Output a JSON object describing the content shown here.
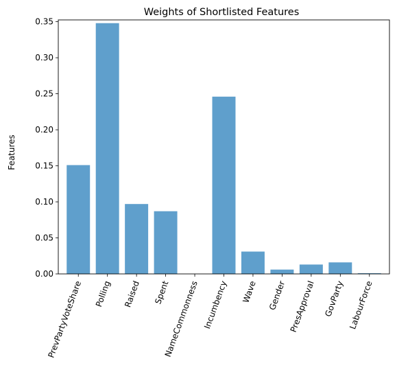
{
  "chart_data": {
    "type": "bar",
    "title": "Weights of Shortlisted Features",
    "xlabel": "",
    "ylabel": "Features",
    "categories": [
      "PrevPartyVoteShare",
      "Polling",
      "Raised",
      "Spent",
      "NameCommonness",
      "Incumbency",
      "Wave",
      "Gender",
      "PresApproval",
      "GovParty",
      "LabourForce"
    ],
    "values": [
      0.151,
      0.348,
      0.097,
      0.087,
      0.0,
      0.246,
      0.031,
      0.006,
      0.013,
      0.016,
      0.001
    ],
    "ylim": [
      0,
      0.35
    ],
    "yticks": [
      "0.00",
      "0.05",
      "0.10",
      "0.15",
      "0.20",
      "0.25",
      "0.30",
      "0.35"
    ],
    "grid": false,
    "bar_color": "#5f9fcc"
  }
}
